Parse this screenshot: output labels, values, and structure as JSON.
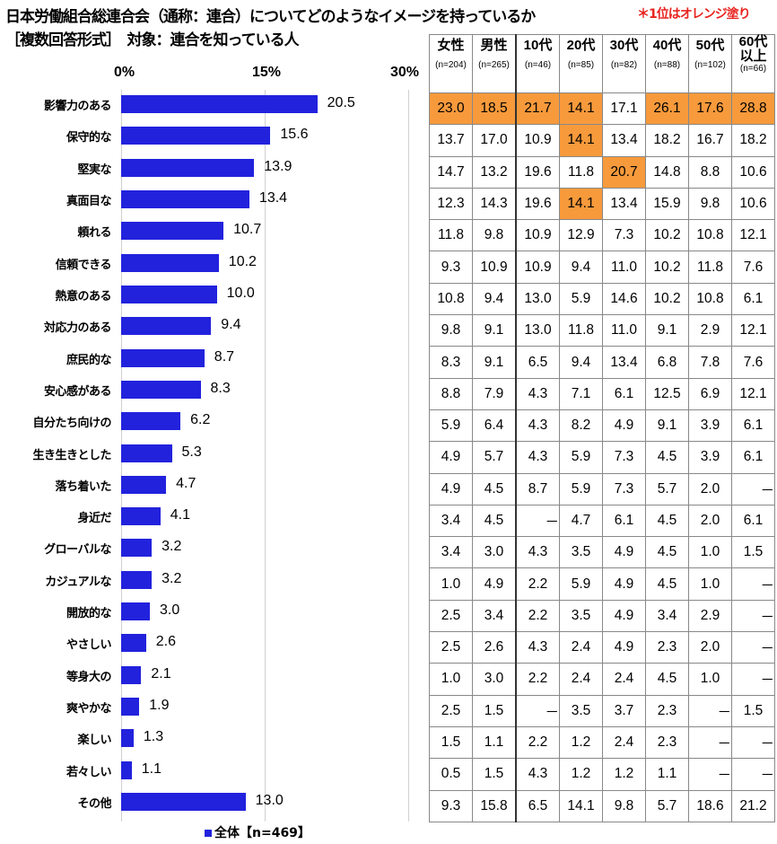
{
  "title": "日本労働組合総連合会（通称：連合）についてどのようなイメージを持っているか",
  "subtitle": "［複数回答形式］　対象：連合を知っている人",
  "note": "＊1位はオレンジ塗り",
  "legend": "全体【n=469】",
  "colors": {
    "bar": "#2222dd",
    "highlight": "#f79a3c"
  },
  "chart_data": {
    "type": "bar",
    "orientation": "horizontal",
    "xlim": [
      0,
      30
    ],
    "grid": true,
    "ticks": [
      "0%",
      "15%",
      "30%"
    ],
    "categories": [
      "影響力のある",
      "保守的な",
      "堅実な",
      "真面目な",
      "頼れる",
      "信頼できる",
      "熱意のある",
      "対応力のある",
      "庶民的な",
      "安心感がある",
      "自分たち向けの",
      "生き生きとした",
      "落ち着いた",
      "身近だ",
      "グローバルな",
      "カジュアルな",
      "開放的な",
      "やさしい",
      "等身大の",
      "爽やかな",
      "楽しい",
      "若々しい",
      "その他"
    ],
    "series": [
      {
        "name": "全体【n=469】",
        "values": [
          20.5,
          15.6,
          13.9,
          13.4,
          10.7,
          10.2,
          10.0,
          9.4,
          8.7,
          8.3,
          6.2,
          5.3,
          4.7,
          4.1,
          3.2,
          3.2,
          3.0,
          2.6,
          2.1,
          1.9,
          1.3,
          1.1,
          13.0
        ]
      }
    ],
    "table": {
      "columns": [
        {
          "label": "女性",
          "n": "(n=204)"
        },
        {
          "label": "男性",
          "n": "(n=265)"
        },
        {
          "label": "10代",
          "n": "(n=46)"
        },
        {
          "label": "20代",
          "n": "(n=85)"
        },
        {
          "label": "30代",
          "n": "(n=82)"
        },
        {
          "label": "40代",
          "n": "(n=88)"
        },
        {
          "label": "50代",
          "n": "(n=102)"
        },
        {
          "label": "60代以上",
          "n": "(n=66)"
        }
      ],
      "rows": [
        [
          "23.0",
          "18.5",
          "21.7",
          "14.1",
          "17.1",
          "26.1",
          "17.6",
          "28.8"
        ],
        [
          "13.7",
          "17.0",
          "10.9",
          "14.1",
          "13.4",
          "18.2",
          "16.7",
          "18.2"
        ],
        [
          "14.7",
          "13.2",
          "19.6",
          "11.8",
          "20.7",
          "14.8",
          "8.8",
          "10.6"
        ],
        [
          "12.3",
          "14.3",
          "19.6",
          "14.1",
          "13.4",
          "15.9",
          "9.8",
          "10.6"
        ],
        [
          "11.8",
          "9.8",
          "10.9",
          "12.9",
          "7.3",
          "10.2",
          "10.8",
          "12.1"
        ],
        [
          "9.3",
          "10.9",
          "10.9",
          "9.4",
          "11.0",
          "10.2",
          "11.8",
          "7.6"
        ],
        [
          "10.8",
          "9.4",
          "13.0",
          "5.9",
          "14.6",
          "10.2",
          "10.8",
          "6.1"
        ],
        [
          "9.8",
          "9.1",
          "13.0",
          "11.8",
          "11.0",
          "9.1",
          "2.9",
          "12.1"
        ],
        [
          "8.3",
          "9.1",
          "6.5",
          "9.4",
          "13.4",
          "6.8",
          "7.8",
          "7.6"
        ],
        [
          "8.8",
          "7.9",
          "4.3",
          "7.1",
          "6.1",
          "12.5",
          "6.9",
          "12.1"
        ],
        [
          "5.9",
          "6.4",
          "4.3",
          "8.2",
          "4.9",
          "9.1",
          "3.9",
          "6.1"
        ],
        [
          "4.9",
          "5.7",
          "4.3",
          "5.9",
          "7.3",
          "4.5",
          "3.9",
          "6.1"
        ],
        [
          "4.9",
          "4.5",
          "8.7",
          "5.9",
          "7.3",
          "5.7",
          "2.0",
          "－"
        ],
        [
          "3.4",
          "4.5",
          "－",
          "4.7",
          "6.1",
          "4.5",
          "2.0",
          "6.1"
        ],
        [
          "3.4",
          "3.0",
          "4.3",
          "3.5",
          "4.9",
          "4.5",
          "1.0",
          "1.5"
        ],
        [
          "1.0",
          "4.9",
          "2.2",
          "5.9",
          "4.9",
          "4.5",
          "1.0",
          "－"
        ],
        [
          "2.5",
          "3.4",
          "2.2",
          "3.5",
          "4.9",
          "3.4",
          "2.9",
          "－"
        ],
        [
          "2.5",
          "2.6",
          "4.3",
          "2.4",
          "4.9",
          "2.3",
          "2.0",
          "－"
        ],
        [
          "1.0",
          "3.0",
          "2.2",
          "2.4",
          "2.4",
          "4.5",
          "1.0",
          "－"
        ],
        [
          "2.5",
          "1.5",
          "－",
          "3.5",
          "3.7",
          "2.3",
          "－",
          "1.5"
        ],
        [
          "1.5",
          "1.1",
          "2.2",
          "1.2",
          "2.4",
          "2.3",
          "－",
          "－"
        ],
        [
          "0.5",
          "1.5",
          "4.3",
          "1.2",
          "1.2",
          "1.1",
          "－",
          "－"
        ],
        [
          "9.3",
          "15.8",
          "6.5",
          "14.1",
          "9.8",
          "5.7",
          "18.6",
          "21.2"
        ]
      ],
      "highlighted": [
        [
          0,
          0
        ],
        [
          0,
          1
        ],
        [
          0,
          2
        ],
        [
          0,
          3
        ],
        [
          0,
          5
        ],
        [
          0,
          6
        ],
        [
          0,
          7
        ],
        [
          1,
          3
        ],
        [
          2,
          4
        ],
        [
          3,
          3
        ]
      ]
    }
  }
}
